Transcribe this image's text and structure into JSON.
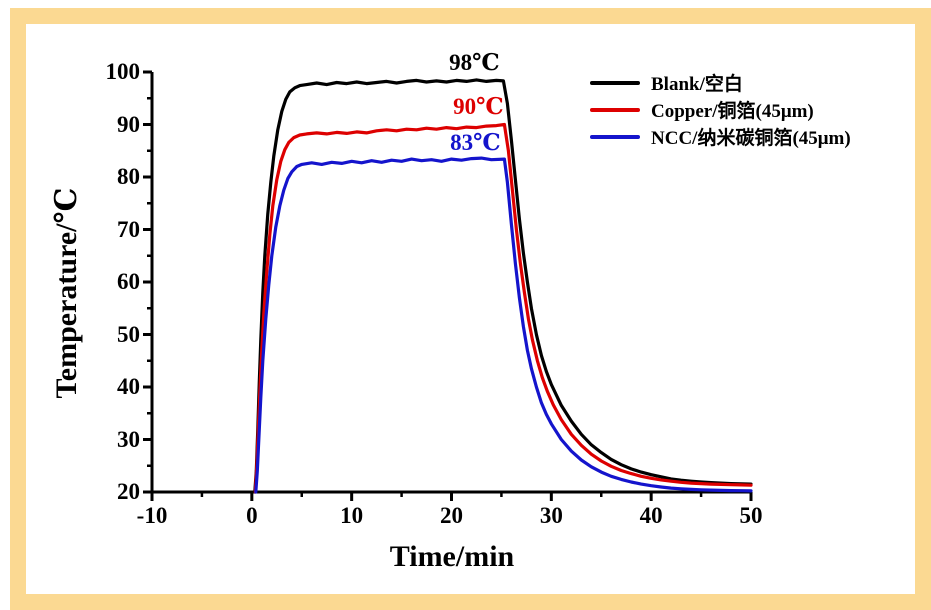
{
  "frame": {
    "border_color": "#fbd992",
    "background_color": "#ffffff"
  },
  "chart_data": {
    "type": "line",
    "xlabel": "Time/min",
    "ylabel": "Temperature/℃",
    "xlim": [
      -10,
      50
    ],
    "ylim": [
      20,
      100
    ],
    "x_major_ticks": [
      -10,
      0,
      10,
      20,
      30,
      40,
      50
    ],
    "y_major_ticks": [
      20,
      30,
      40,
      50,
      60,
      70,
      80,
      90,
      100
    ],
    "minor_tick_step": 5,
    "grid": false,
    "legend_position": "top-right",
    "axis_color": "#000000",
    "series": [
      {
        "name": "Blank/空白",
        "color": "#000000",
        "plateau_temperature_c": 98,
        "points": [
          [
            0.3,
            20
          ],
          [
            0.45,
            24
          ],
          [
            0.6,
            32
          ],
          [
            0.75,
            41
          ],
          [
            0.9,
            49
          ],
          [
            1.1,
            58
          ],
          [
            1.3,
            65
          ],
          [
            1.6,
            73
          ],
          [
            1.9,
            79
          ],
          [
            2.2,
            84
          ],
          [
            2.6,
            89
          ],
          [
            3.0,
            92.5
          ],
          [
            3.4,
            94.8
          ],
          [
            3.8,
            96.2
          ],
          [
            4.3,
            97.0
          ],
          [
            4.8,
            97.4
          ],
          [
            5.5,
            97.6
          ],
          [
            6.5,
            97.9
          ],
          [
            7.5,
            97.6
          ],
          [
            8.5,
            98.0
          ],
          [
            9.5,
            97.8
          ],
          [
            10.5,
            98.1
          ],
          [
            11.5,
            97.8
          ],
          [
            12.5,
            98.0
          ],
          [
            13.5,
            98.2
          ],
          [
            14.5,
            97.9
          ],
          [
            15.5,
            98.2
          ],
          [
            16.5,
            98.4
          ],
          [
            17.5,
            98.1
          ],
          [
            18.5,
            98.3
          ],
          [
            19.5,
            98.1
          ],
          [
            20.5,
            98.4
          ],
          [
            21.5,
            98.2
          ],
          [
            22.5,
            98.5
          ],
          [
            23.5,
            98.2
          ],
          [
            24.5,
            98.4
          ],
          [
            25.2,
            98.3
          ],
          [
            25.6,
            94
          ],
          [
            26.0,
            87
          ],
          [
            26.4,
            79.5
          ],
          [
            26.8,
            72
          ],
          [
            27.2,
            65.5
          ],
          [
            27.6,
            60
          ],
          [
            28.0,
            55
          ],
          [
            28.5,
            50
          ],
          [
            29,
            46
          ],
          [
            29.5,
            43
          ],
          [
            30,
            40.5
          ],
          [
            31,
            36.5
          ],
          [
            32,
            33.5
          ],
          [
            33,
            31
          ],
          [
            34,
            29
          ],
          [
            35,
            27.5
          ],
          [
            36,
            26.2
          ],
          [
            37,
            25.2
          ],
          [
            38,
            24.4
          ],
          [
            39,
            23.8
          ],
          [
            40,
            23.3
          ],
          [
            41,
            22.9
          ],
          [
            42,
            22.5
          ],
          [
            43,
            22.25
          ],
          [
            44,
            22.05
          ],
          [
            45,
            21.9
          ],
          [
            46,
            21.8
          ],
          [
            47,
            21.7
          ],
          [
            48,
            21.6
          ],
          [
            49,
            21.55
          ],
          [
            50,
            21.5
          ]
        ]
      },
      {
        "name": "Copper/铜箔(45μm)",
        "color": "#dd0000",
        "plateau_temperature_c": 90,
        "points": [
          [
            0.35,
            20
          ],
          [
            0.5,
            25
          ],
          [
            0.65,
            32
          ],
          [
            0.8,
            39
          ],
          [
            1.0,
            47
          ],
          [
            1.2,
            54
          ],
          [
            1.5,
            62
          ],
          [
            1.8,
            69
          ],
          [
            2.1,
            74.5
          ],
          [
            2.5,
            79.5
          ],
          [
            2.9,
            83
          ],
          [
            3.3,
            85.2
          ],
          [
            3.7,
            86.6
          ],
          [
            4.2,
            87.5
          ],
          [
            4.8,
            88.0
          ],
          [
            5.5,
            88.2
          ],
          [
            6.5,
            88.4
          ],
          [
            7.5,
            88.2
          ],
          [
            8.5,
            88.5
          ],
          [
            9.5,
            88.3
          ],
          [
            10.5,
            88.6
          ],
          [
            11.5,
            88.4
          ],
          [
            12.5,
            88.8
          ],
          [
            13.5,
            89.0
          ],
          [
            14.5,
            88.8
          ],
          [
            15.5,
            89.1
          ],
          [
            16.5,
            89.0
          ],
          [
            17.5,
            89.3
          ],
          [
            18.5,
            89.1
          ],
          [
            19.5,
            89.4
          ],
          [
            20.5,
            89.2
          ],
          [
            21.5,
            89.5
          ],
          [
            22.5,
            89.4
          ],
          [
            23.5,
            89.7
          ],
          [
            24.5,
            89.8
          ],
          [
            25.3,
            90.0
          ],
          [
            25.7,
            85
          ],
          [
            26.1,
            77.5
          ],
          [
            26.5,
            70
          ],
          [
            26.9,
            63.5
          ],
          [
            27.3,
            58
          ],
          [
            27.7,
            53
          ],
          [
            28.1,
            49
          ],
          [
            28.6,
            45
          ],
          [
            29.1,
            41.8
          ],
          [
            29.6,
            39.2
          ],
          [
            30.2,
            36.6
          ],
          [
            31,
            33.8
          ],
          [
            32,
            31
          ],
          [
            33,
            28.9
          ],
          [
            34,
            27.2
          ],
          [
            35,
            25.9
          ],
          [
            36,
            24.9
          ],
          [
            37,
            24.1
          ],
          [
            38,
            23.5
          ],
          [
            39,
            23
          ],
          [
            40,
            22.6
          ],
          [
            41,
            22.3
          ],
          [
            42,
            22.05
          ],
          [
            43,
            21.85
          ],
          [
            44,
            21.7
          ],
          [
            45,
            21.6
          ],
          [
            46,
            21.5
          ],
          [
            47,
            21.45
          ],
          [
            48,
            21.4
          ],
          [
            49,
            21.35
          ],
          [
            50,
            21.3
          ]
        ]
      },
      {
        "name": "NCC/纳米碳铜箔(45μm)",
        "color": "#1414cc",
        "plateau_temperature_c": 83,
        "points": [
          [
            0.4,
            20
          ],
          [
            0.55,
            24
          ],
          [
            0.7,
            30
          ],
          [
            0.9,
            38
          ],
          [
            1.1,
            45
          ],
          [
            1.4,
            53
          ],
          [
            1.7,
            59.5
          ],
          [
            2.0,
            65
          ],
          [
            2.4,
            70.5
          ],
          [
            2.8,
            74.5
          ],
          [
            3.2,
            77.5
          ],
          [
            3.6,
            79.7
          ],
          [
            4.0,
            81.0
          ],
          [
            4.5,
            82.0
          ],
          [
            5.0,
            82.4
          ],
          [
            6,
            82.7
          ],
          [
            7,
            82.4
          ],
          [
            8,
            82.8
          ],
          [
            9,
            82.6
          ],
          [
            10,
            83.0
          ],
          [
            11,
            82.7
          ],
          [
            12,
            83.1
          ],
          [
            13,
            82.8
          ],
          [
            14,
            83.2
          ],
          [
            15,
            83.0
          ],
          [
            16,
            83.4
          ],
          [
            17,
            83.1
          ],
          [
            18,
            83.3
          ],
          [
            19,
            83.0
          ],
          [
            20,
            83.4
          ],
          [
            21,
            83.2
          ],
          [
            22,
            83.5
          ],
          [
            23,
            83.6
          ],
          [
            24,
            83.3
          ],
          [
            25.3,
            83.4
          ],
          [
            25.6,
            79
          ],
          [
            26.0,
            71
          ],
          [
            26.4,
            63.5
          ],
          [
            26.8,
            57
          ],
          [
            27.2,
            51.5
          ],
          [
            27.6,
            47
          ],
          [
            28.0,
            43.5
          ],
          [
            28.5,
            40
          ],
          [
            29,
            37
          ],
          [
            29.5,
            34.8
          ],
          [
            30,
            33
          ],
          [
            31,
            30
          ],
          [
            32,
            27.8
          ],
          [
            33,
            26.1
          ],
          [
            34,
            24.8
          ],
          [
            35,
            23.8
          ],
          [
            36,
            23
          ],
          [
            37,
            22.4
          ],
          [
            38,
            21.9
          ],
          [
            39,
            21.5
          ],
          [
            40,
            21.2
          ],
          [
            41,
            20.95
          ],
          [
            42,
            20.75
          ],
          [
            43,
            20.6
          ],
          [
            44,
            20.5
          ],
          [
            45,
            20.42
          ],
          [
            46,
            20.36
          ],
          [
            47,
            20.3
          ],
          [
            48,
            20.27
          ],
          [
            49,
            20.24
          ],
          [
            50,
            20.2
          ]
        ]
      }
    ],
    "annotations": [
      {
        "text": "98℃",
        "color": "#000000",
        "x": 22.3,
        "y": 101.7
      },
      {
        "text": "90℃",
        "color": "#dd0000",
        "x": 22.7,
        "y": 93.3
      },
      {
        "text": "83℃",
        "color": "#1414cc",
        "x": 22.4,
        "y": 86.5
      }
    ]
  }
}
